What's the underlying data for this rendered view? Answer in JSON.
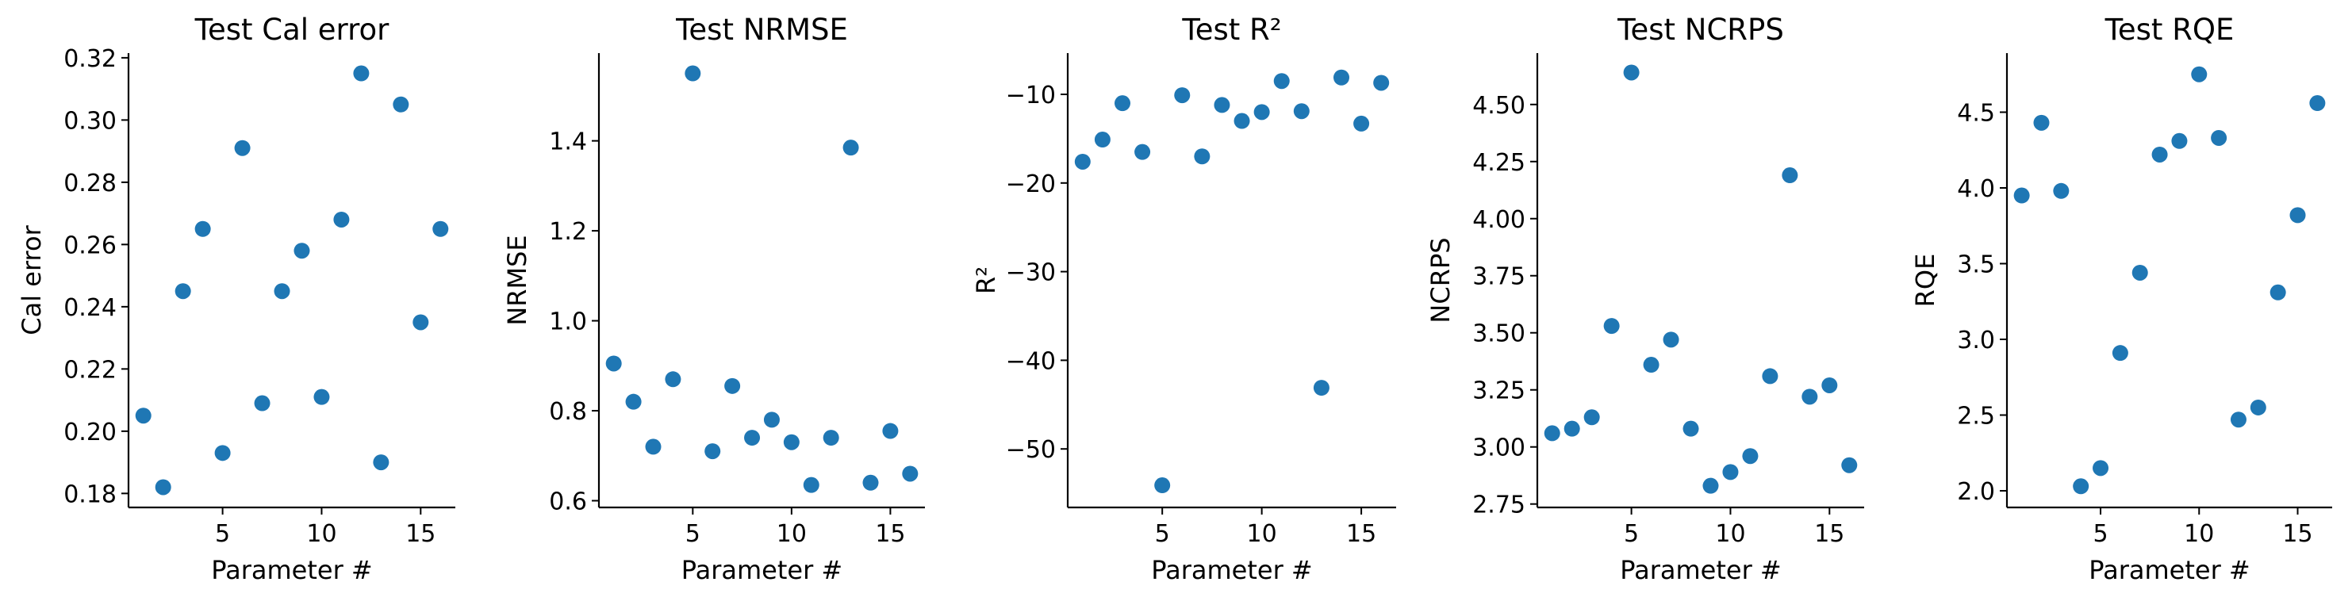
{
  "chart_data": [
    {
      "type": "scatter",
      "title": "Test Cal error",
      "xlabel": "Parameter #",
      "ylabel": "Cal error",
      "xlim": [
        0.25,
        16.75
      ],
      "ylim": [
        0.1755,
        0.3215
      ],
      "xticks": [
        5,
        10,
        15
      ],
      "yticks": [
        0.18,
        0.2,
        0.22,
        0.24,
        0.26,
        0.28,
        0.3,
        0.32
      ],
      "ytick_labels": [
        "0.18",
        "0.20",
        "0.22",
        "0.24",
        "0.26",
        "0.28",
        "0.30",
        "0.32"
      ],
      "x": [
        1,
        2,
        3,
        4,
        5,
        6,
        7,
        8,
        9,
        10,
        11,
        12,
        13,
        14,
        15,
        16
      ],
      "y": [
        0.205,
        0.182,
        0.245,
        0.265,
        0.193,
        0.291,
        0.209,
        0.245,
        0.258,
        0.211,
        0.268,
        0.315,
        0.19,
        0.305,
        0.235,
        0.265
      ],
      "color": "#1f77b4"
    },
    {
      "type": "scatter",
      "title": "Test NRMSE",
      "xlabel": "Parameter #",
      "ylabel": "NRMSE",
      "xlim": [
        0.25,
        16.75
      ],
      "ylim": [
        0.585,
        1.595
      ],
      "xticks": [
        5,
        10,
        15
      ],
      "yticks": [
        0.6,
        0.8,
        1.0,
        1.2,
        1.4
      ],
      "ytick_labels": [
        "0.6",
        "0.8",
        "1.0",
        "1.2",
        "1.4"
      ],
      "x": [
        1,
        2,
        3,
        4,
        5,
        6,
        7,
        8,
        9,
        10,
        11,
        12,
        13,
        14,
        15,
        16
      ],
      "y": [
        0.905,
        0.82,
        0.72,
        0.87,
        1.55,
        0.71,
        0.855,
        0.74,
        0.78,
        0.73,
        0.635,
        0.74,
        1.385,
        0.64,
        0.755,
        0.66
      ],
      "color": "#1f77b4"
    },
    {
      "type": "scatter",
      "title": "Test R²",
      "xlabel": "Parameter #",
      "ylabel": "R²",
      "xlim": [
        0.25,
        16.75
      ],
      "ylim": [
        -56.6,
        -5.35
      ],
      "xticks": [
        5,
        10,
        15
      ],
      "yticks": [
        -50,
        -40,
        -30,
        -20,
        -10
      ],
      "ytick_labels": [
        "−50",
        "−40",
        "−30",
        "−20",
        "−10"
      ],
      "x": [
        1,
        2,
        3,
        4,
        5,
        6,
        7,
        8,
        9,
        10,
        11,
        12,
        13,
        14,
        15,
        16
      ],
      "y": [
        -17.6,
        -15.1,
        -11.0,
        -16.5,
        -54.1,
        -10.1,
        -17.0,
        -11.2,
        -13.0,
        -12.0,
        -8.5,
        -11.9,
        -43.1,
        -8.1,
        -13.3,
        -8.7
      ],
      "color": "#1f77b4"
    },
    {
      "type": "scatter",
      "title": "Test NCRPS",
      "xlabel": "Parameter #",
      "ylabel": "NCRPS",
      "xlim": [
        0.25,
        16.75
      ],
      "ylim": [
        2.735,
        4.725
      ],
      "xticks": [
        5,
        10,
        15
      ],
      "yticks": [
        2.75,
        3.0,
        3.25,
        3.5,
        3.75,
        4.0,
        4.25,
        4.5
      ],
      "ytick_labels": [
        "2.75",
        "3.00",
        "3.25",
        "3.50",
        "3.75",
        "4.00",
        "4.25",
        "4.50"
      ],
      "x": [
        1,
        2,
        3,
        4,
        5,
        6,
        7,
        8,
        9,
        10,
        11,
        12,
        13,
        14,
        15,
        16
      ],
      "y": [
        3.06,
        3.08,
        3.13,
        3.53,
        4.64,
        3.36,
        3.47,
        3.08,
        2.83,
        2.89,
        2.96,
        3.31,
        4.19,
        3.22,
        3.27,
        2.92
      ],
      "color": "#1f77b4"
    },
    {
      "type": "scatter",
      "title": "Test RQE",
      "xlabel": "Parameter #",
      "ylabel": "RQE",
      "xlim": [
        0.25,
        16.75
      ],
      "ylim": [
        1.89,
        4.89
      ],
      "xticks": [
        5,
        10,
        15
      ],
      "yticks": [
        2.0,
        2.5,
        3.0,
        3.5,
        4.0,
        4.5
      ],
      "ytick_labels": [
        "2.0",
        "2.5",
        "3.0",
        "3.5",
        "4.0",
        "4.5"
      ],
      "x": [
        1,
        2,
        3,
        4,
        5,
        6,
        7,
        8,
        9,
        10,
        11,
        12,
        13,
        14,
        15,
        16
      ],
      "y": [
        3.95,
        4.43,
        3.98,
        2.03,
        2.15,
        2.91,
        3.44,
        4.22,
        4.31,
        4.75,
        4.33,
        2.47,
        2.55,
        3.31,
        3.82,
        4.56
      ],
      "color": "#1f77b4"
    }
  ]
}
